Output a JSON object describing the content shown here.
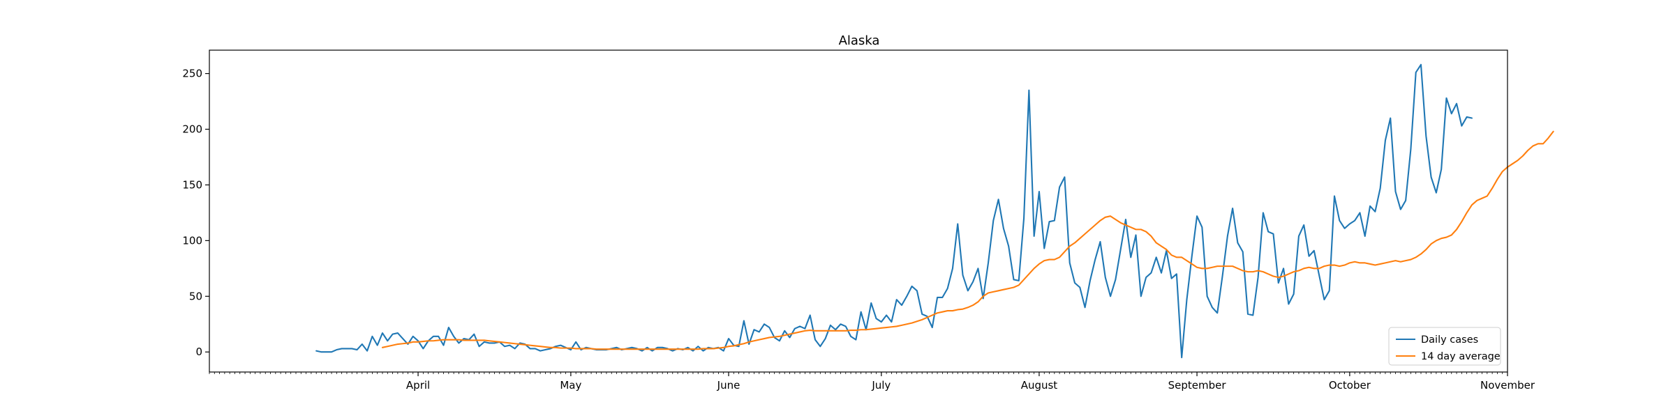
{
  "chart_data": {
    "type": "line",
    "title": "Alaska",
    "xlabel": "",
    "ylabel": "",
    "x_start": "2020-03-12",
    "xlim": [
      "2020-02-20",
      "2020-11-01"
    ],
    "ylim": [
      -18,
      271
    ],
    "x_ticks": [
      {
        "date": "2020-04-01",
        "label": "April"
      },
      {
        "date": "2020-05-01",
        "label": "May"
      },
      {
        "date": "2020-06-01",
        "label": "June"
      },
      {
        "date": "2020-07-01",
        "label": "July"
      },
      {
        "date": "2020-08-01",
        "label": "August"
      },
      {
        "date": "2020-09-01",
        "label": "September"
      },
      {
        "date": "2020-10-01",
        "label": "October"
      },
      {
        "date": "2020-11-01",
        "label": "November"
      }
    ],
    "y_ticks": [
      0,
      50,
      100,
      150,
      200,
      250
    ],
    "legend": {
      "position": "lower-right"
    },
    "grid": false,
    "series": [
      {
        "name": "Daily cases",
        "color": "#1f77b4",
        "values": [
          1,
          0,
          0,
          0,
          2,
          3,
          3,
          3,
          2,
          7,
          1,
          14,
          6,
          17,
          10,
          16,
          17,
          12,
          7,
          14,
          10,
          3,
          10,
          14,
          14,
          6,
          22,
          14,
          8,
          12,
          11,
          16,
          5,
          9,
          8,
          8,
          9,
          5,
          6,
          3,
          8,
          7,
          3,
          3,
          1,
          2,
          3,
          5,
          6,
          4,
          2,
          9,
          2,
          4,
          3,
          2,
          2,
          2,
          3,
          4,
          2,
          3,
          4,
          3,
          1,
          4,
          1,
          4,
          4,
          3,
          1,
          3,
          2,
          4,
          1,
          5,
          1,
          4,
          3,
          4,
          1,
          12,
          6,
          5,
          28,
          7,
          20,
          18,
          25,
          22,
          13,
          10,
          19,
          13,
          21,
          23,
          21,
          33,
          11,
          5,
          12,
          24,
          20,
          25,
          23,
          14,
          11,
          36,
          20,
          44,
          30,
          27,
          33,
          27,
          47,
          42,
          50,
          59,
          55,
          34,
          32,
          22,
          49,
          49,
          57,
          75,
          115,
          69,
          55,
          63,
          75,
          48,
          80,
          118,
          137,
          111,
          95,
          65,
          64,
          120,
          235,
          104,
          144,
          93,
          117,
          118,
          148,
          157,
          80,
          62,
          58,
          40,
          64,
          83,
          99,
          67,
          50,
          65,
          92,
          119,
          85,
          105,
          50,
          67,
          71,
          85,
          71,
          91,
          66,
          70,
          -5,
          47,
          86,
          122,
          112,
          50,
          40,
          35,
          68,
          104,
          129,
          98,
          90,
          34,
          33,
          67,
          125,
          108,
          106,
          62,
          75,
          43,
          52,
          104,
          114,
          86,
          91,
          69,
          47,
          55,
          140,
          118,
          111,
          115,
          118,
          125,
          104,
          131,
          126,
          147,
          190,
          210,
          144,
          128,
          136,
          182,
          251,
          258,
          194,
          157,
          143,
          164,
          228,
          214,
          223,
          203,
          211,
          210
        ]
      },
      {
        "name": "14 day average",
        "color": "#ff7f0e",
        "offset": 13,
        "values": [
          4,
          5,
          6,
          7,
          7.5,
          8,
          9,
          9,
          9.5,
          10,
          10,
          10.5,
          11,
          11,
          11,
          11,
          10.5,
          10.5,
          10.5,
          10.5,
          10.5,
          10,
          9.5,
          9,
          8.5,
          8,
          7.5,
          7,
          6.5,
          6,
          5.5,
          5,
          4.5,
          4,
          4,
          3.5,
          3.5,
          3.5,
          3,
          3,
          3,
          3,
          2.5,
          2.5,
          2.5,
          2.5,
          2.5,
          2.5,
          2.5,
          2.5,
          2.5,
          2.5,
          2.5,
          2.5,
          2.5,
          2.5,
          2.5,
          2.5,
          2.5,
          2.5,
          2.5,
          2.5,
          2.5,
          3,
          3,
          3,
          3.5,
          4,
          5,
          5.5,
          6.5,
          7.5,
          9,
          10,
          11,
          12,
          13,
          13.5,
          14,
          15,
          16,
          17,
          18,
          19,
          19.5,
          19,
          19,
          19,
          19,
          19,
          19,
          19,
          19.5,
          19.5,
          20,
          20,
          20.5,
          21,
          21.5,
          22,
          22.5,
          23,
          24,
          25,
          26,
          27.5,
          29,
          31,
          33,
          35,
          36,
          37,
          37,
          38,
          38.5,
          40,
          42,
          45,
          50,
          53,
          54,
          55,
          56,
          57,
          58,
          60,
          65,
          70,
          75,
          79,
          82,
          83,
          83,
          85,
          90,
          95,
          98,
          102,
          106,
          110,
          114,
          118,
          121,
          122,
          119,
          116,
          114,
          112,
          110,
          110,
          108,
          104,
          98,
          95,
          92,
          87,
          85,
          85,
          82,
          79,
          76,
          75,
          75,
          76,
          77,
          77,
          77,
          77,
          75,
          73,
          72,
          72,
          73,
          72,
          70,
          68,
          67,
          68,
          70,
          72,
          73,
          75,
          76,
          75,
          75,
          77,
          78,
          78,
          77,
          78,
          80,
          81,
          80,
          80,
          79,
          78,
          79,
          80,
          81,
          82,
          81,
          82,
          83,
          85,
          88,
          92,
          97,
          100,
          102,
          103,
          105,
          110,
          117,
          125,
          132,
          136,
          138,
          140,
          147,
          155,
          162,
          166,
          169,
          172,
          176,
          181,
          185,
          187,
          187,
          192,
          198
        ]
      }
    ]
  }
}
